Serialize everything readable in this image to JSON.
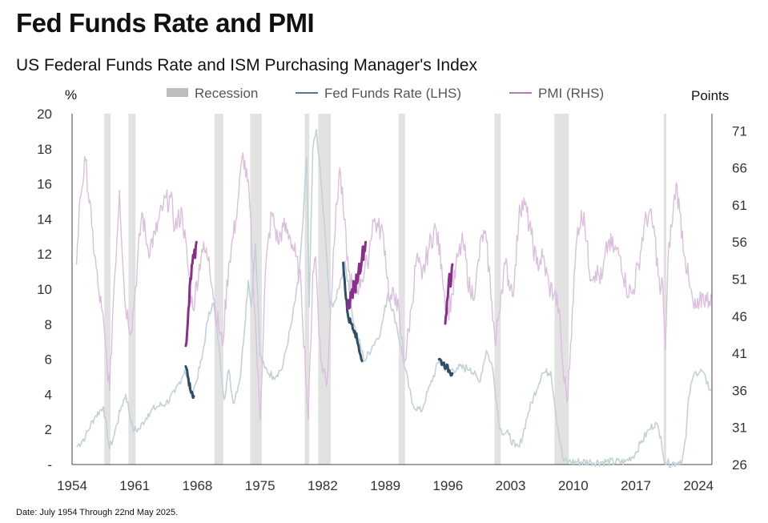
{
  "title": "Fed Funds Rate and PMI",
  "subtitle": "US Federal Funds Rate and ISM Purchasing Manager's Index",
  "footnote": "Date: July 1954 Through 22nd May 2025.",
  "colors": {
    "recession": "#e2e2e2",
    "fed_light": "#c3d2d6",
    "fed_dark": "#2d4e66",
    "pmi_light": "#dcbfde",
    "pmi_dark": "#8a2e8c"
  },
  "chart_data": {
    "type": "line",
    "xlim": [
      1954.0,
      2025.5
    ],
    "x_ticks": [
      "1954",
      "1961",
      "1968",
      "1975",
      "1982",
      "1989",
      "1996",
      "2003",
      "2010",
      "2017",
      "2024"
    ],
    "left_axis": {
      "label": "%",
      "range": [
        0,
        20
      ],
      "ticks": [
        "-",
        "2",
        "4",
        "6",
        "8",
        "10",
        "12",
        "14",
        "16",
        "18",
        "20"
      ]
    },
    "right_axis": {
      "label": "Points",
      "range": [
        26,
        73.3
      ],
      "ticks": [
        "26",
        "31",
        "36",
        "41",
        "46",
        "51",
        "56",
        "61",
        "66",
        "71"
      ]
    },
    "legend": [
      {
        "name": "Recession",
        "kind": "box"
      },
      {
        "name": "Fed Funds Rate (LHS)",
        "kind": "line"
      },
      {
        "name": "PMI (RHS)",
        "kind": "line"
      }
    ],
    "recessions": [
      [
        1957.6,
        1958.3
      ],
      [
        1960.3,
        1961.1
      ],
      [
        1969.9,
        1970.9
      ],
      [
        1973.9,
        1975.2
      ],
      [
        1980.0,
        1980.5
      ],
      [
        1981.5,
        1982.9
      ],
      [
        1990.5,
        1991.2
      ],
      [
        2001.2,
        2001.9
      ],
      [
        2007.9,
        2009.5
      ],
      [
        2020.1,
        2020.4
      ]
    ],
    "series": [
      {
        "name": "Fed Funds Rate (LHS)",
        "axis": "left",
        "x": [
          1954.5,
          1955.5,
          1956.5,
          1957.5,
          1958.2,
          1958.6,
          1959.5,
          1960.0,
          1960.8,
          1961.5,
          1962.5,
          1963.5,
          1964.5,
          1965.5,
          1966.6,
          1967.3,
          1967.8,
          1968.5,
          1969.3,
          1969.8,
          1970.5,
          1971.0,
          1971.5,
          1972.0,
          1972.8,
          1973.7,
          1974.0,
          1974.5,
          1975.0,
          1975.5,
          1976.5,
          1977.5,
          1978.5,
          1979.3,
          1979.8,
          1980.2,
          1980.5,
          1980.9,
          1981.3,
          1981.6,
          1982.3,
          1982.8,
          1983.5,
          1984.5,
          1985.5,
          1986.7,
          1987.5,
          1988.5,
          1989.3,
          1990.2,
          1991.0,
          1992.0,
          1993.0,
          1994.0,
          1995.0,
          1996.0,
          1997.0,
          1998.5,
          1999.5,
          2000.3,
          2001.0,
          2001.8,
          2002.8,
          2003.5,
          2004.0,
          2005.0,
          2006.5,
          2007.5,
          2008.3,
          2008.9,
          2009.5,
          2012.0,
          2015.8,
          2016.9,
          2017.5,
          2018.5,
          2019.2,
          2019.8,
          2020.2,
          2020.5,
          2021.5,
          2022.2,
          2022.6,
          2022.9,
          2023.3,
          2023.7,
          2024.5,
          2024.9,
          2025.4
        ],
        "values": [
          1.0,
          1.6,
          2.7,
          3.3,
          0.9,
          1.5,
          3.3,
          4.0,
          2.0,
          2.0,
          2.9,
          3.3,
          3.5,
          4.1,
          5.4,
          3.9,
          4.6,
          6.0,
          8.7,
          9.2,
          6.3,
          3.7,
          5.4,
          3.5,
          5.0,
          10.5,
          9.0,
          12.6,
          6.2,
          5.5,
          5.0,
          5.5,
          8.0,
          10.5,
          13.8,
          17.5,
          9.0,
          18.0,
          19.1,
          17.5,
          13.0,
          9.0,
          9.4,
          11.6,
          8.0,
          5.9,
          6.7,
          7.6,
          9.8,
          8.1,
          6.0,
          3.5,
          3.0,
          4.5,
          5.9,
          5.3,
          5.5,
          5.5,
          4.7,
          6.5,
          5.5,
          2.0,
          1.7,
          1.0,
          1.0,
          3.0,
          5.2,
          5.3,
          2.0,
          0.2,
          0.15,
          0.15,
          0.15,
          0.6,
          1.2,
          2.0,
          2.4,
          1.6,
          0.1,
          0.08,
          0.08,
          0.3,
          1.6,
          3.8,
          4.8,
          5.3,
          5.3,
          4.6,
          4.3
        ]
      },
      {
        "name": "PMI (RHS)",
        "axis": "right",
        "x": [
          1954.5,
          1954.9,
          1955.5,
          1956.2,
          1956.9,
          1957.3,
          1957.9,
          1958.2,
          1958.6,
          1959.3,
          1959.9,
          1960.6,
          1961.1,
          1961.8,
          1962.5,
          1963.3,
          1964.2,
          1965.0,
          1965.5,
          1966.3,
          1967.0,
          1967.5,
          1968.5,
          1969.3,
          1970.0,
          1970.8,
          1971.5,
          1972.3,
          1973.1,
          1973.8,
          1974.5,
          1975.0,
          1975.6,
          1976.3,
          1977.0,
          1977.6,
          1978.3,
          1979.0,
          1979.6,
          1980.4,
          1980.9,
          1981.2,
          1981.8,
          1982.5,
          1983.2,
          1983.9,
          1984.4,
          1984.9,
          1985.5,
          1986.3,
          1987.0,
          1987.6,
          1988.2,
          1988.8,
          1989.5,
          1990.2,
          1990.8,
          1991.2,
          1991.9,
          1992.5,
          1993.1,
          1993.8,
          1994.6,
          1995.3,
          1995.9,
          1996.5,
          1997.1,
          1997.7,
          1998.5,
          1999.1,
          1999.8,
          2000.3,
          2000.9,
          2001.3,
          2001.9,
          2002.4,
          2003.0,
          2003.4,
          2004.0,
          2004.6,
          2005.3,
          2005.9,
          2006.6,
          2007.3,
          2007.9,
          2008.4,
          2008.9,
          2009.4,
          2009.9,
          2010.5,
          2011.2,
          2011.8,
          2012.5,
          2013.2,
          2013.9,
          2014.6,
          2015.3,
          2015.9,
          2016.6,
          2017.3,
          2017.9,
          2018.5,
          2019.1,
          2019.7,
          2020.0,
          2020.3,
          2020.7,
          2021.0,
          2021.5,
          2021.9,
          2022.5,
          2023.0,
          2023.5,
          2024.0,
          2024.5,
          2024.9,
          2025.4
        ],
        "values": [
          53,
          62,
          67,
          58,
          50,
          47,
          40,
          36,
          48,
          63,
          48,
          44,
          50,
          60,
          55,
          57,
          61,
          62,
          58,
          60,
          52,
          47,
          55,
          54,
          47,
          42,
          53,
          59,
          68,
          62,
          45,
          32,
          52,
          60,
          56,
          58,
          57,
          54,
          50,
          32,
          52,
          54,
          40,
          37,
          55,
          66,
          59,
          52,
          49,
          51,
          53,
          59,
          58,
          57,
          48,
          49,
          43,
          40,
          47,
          54,
          51,
          55,
          58,
          53,
          46,
          49,
          54,
          56,
          49,
          50,
          57,
          56,
          48,
          42,
          49,
          53,
          50,
          50,
          61,
          61,
          57,
          53,
          54,
          50,
          49,
          47,
          38,
          35,
          47,
          58,
          60,
          52,
          52,
          51,
          56,
          55,
          54,
          50,
          49,
          53,
          58,
          60,
          57,
          49,
          50.5,
          41.5,
          56,
          58,
          64,
          60,
          54,
          50,
          47,
          47,
          49,
          48,
          49
        ]
      }
    ],
    "highlights": [
      {
        "series": "Fed Funds Rate (LHS)",
        "x": [
          1966.7,
          1967.0,
          1967.3,
          1967.6
        ],
        "values": [
          5.6,
          4.9,
          4.1,
          3.9
        ]
      },
      {
        "series": "Fed Funds Rate (LHS)",
        "x": [
          1984.3,
          1984.6,
          1984.9,
          1985.3,
          1985.6,
          1986.0,
          1986.4
        ],
        "values": [
          11.5,
          9.5,
          8.3,
          8.0,
          7.6,
          6.8,
          5.9
        ]
      },
      {
        "series": "Fed Funds Rate (LHS)",
        "x": [
          1995.0,
          1995.4,
          1995.8,
          1996.2,
          1996.5
        ],
        "values": [
          6.0,
          5.8,
          5.6,
          5.3,
          5.2
        ]
      },
      {
        "series": "PMI (RHS)",
        "x": [
          1966.7,
          1967.0,
          1967.3,
          1967.6,
          1967.9
        ],
        "values": [
          42,
          47,
          51,
          54,
          56
        ]
      },
      {
        "series": "PMI (RHS)",
        "x": [
          1984.8,
          1985.2,
          1985.6,
          1986.0,
          1986.4,
          1986.8
        ],
        "values": [
          47,
          49,
          50,
          52,
          54,
          56
        ]
      },
      {
        "series": "PMI (RHS)",
        "x": [
          1995.7,
          1995.9,
          1996.1,
          1996.3,
          1996.5
        ],
        "values": [
          45,
          48,
          51,
          50,
          53
        ]
      }
    ]
  }
}
